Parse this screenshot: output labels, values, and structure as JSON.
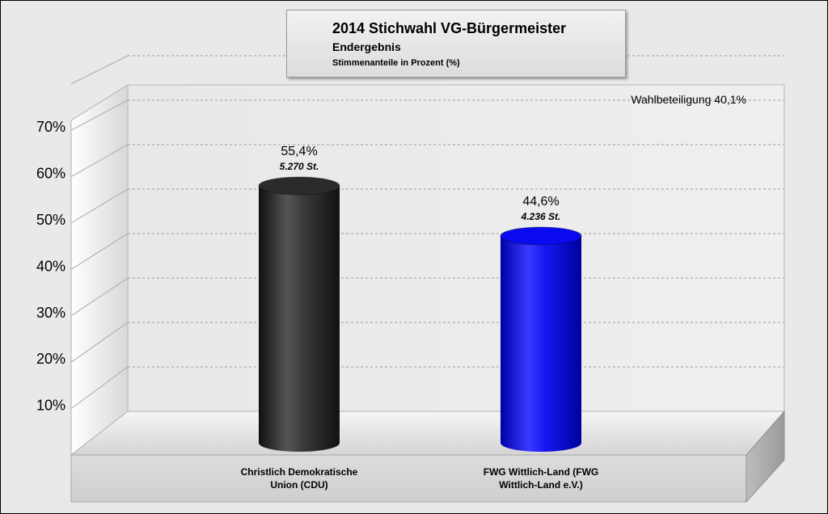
{
  "chart_data": {
    "type": "bar",
    "title": "2014 Stichwahl VG-Bürgermeister",
    "subtitle": "Endergebnis",
    "subtitle2": "Stimmenanteile in Prozent (%)",
    "annotation": "Wahlbeteiligung 40,1%",
    "categories": [
      [
        "Christlich Demokratische",
        "Union (CDU)"
      ],
      [
        "FWG Wittlich-Land (FWG",
        "Wittlich-Land e.V.)"
      ]
    ],
    "values": [
      55.4,
      44.6
    ],
    "value_labels": [
      "55,4%",
      "44,6%"
    ],
    "vote_labels": [
      "5.270 St.",
      "4.236 St."
    ],
    "colors": [
      "#2b2b2b",
      "#0a0af0"
    ],
    "ylim": [
      0,
      80
    ],
    "yticks": [
      10,
      20,
      30,
      40,
      50,
      60,
      70
    ],
    "ytick_labels": [
      "10%",
      "20%",
      "30%",
      "40%",
      "50%",
      "60%",
      "70%"
    ],
    "grid": true,
    "legend": "none"
  }
}
